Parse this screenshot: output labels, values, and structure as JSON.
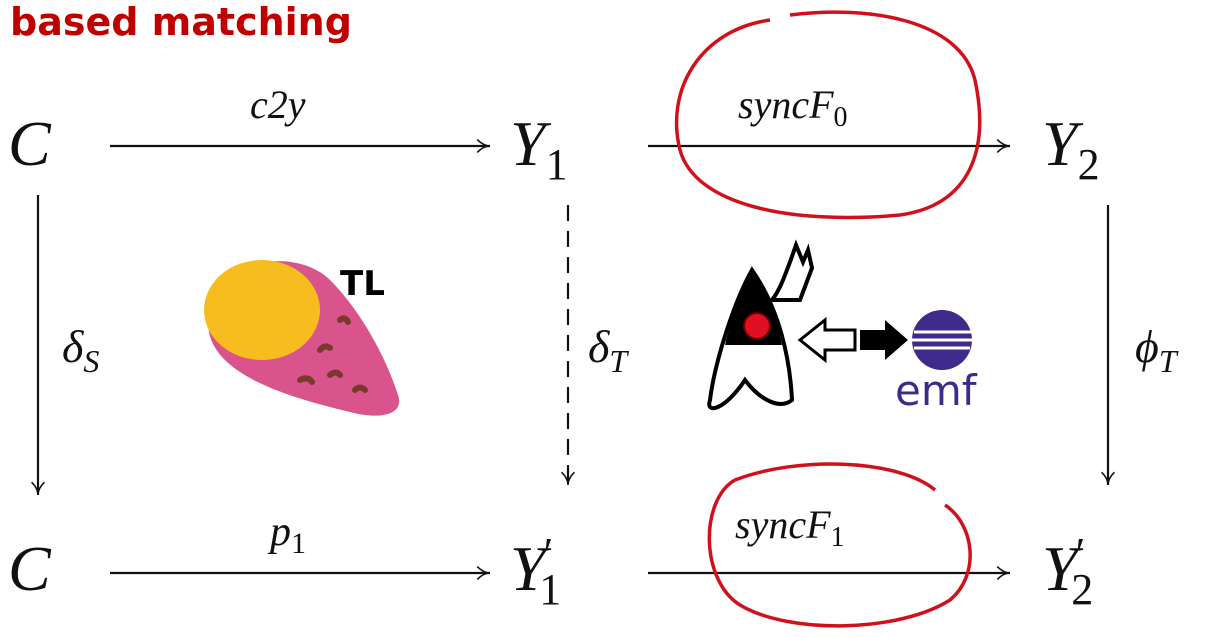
{
  "title": "based matching",
  "nodes": [
    {
      "base": "C"
    },
    {
      "base": "Y",
      "sub": "1"
    },
    {
      "base": "Y",
      "sub": "2"
    },
    {
      "base": "C"
    },
    {
      "base": "Y",
      "sub": "1",
      "prime": "′"
    },
    {
      "base": "Y",
      "sub": "2",
      "prime": "′"
    }
  ],
  "edges": [
    {
      "base": "c2y"
    },
    {
      "base": "syncF",
      "sub": "0"
    },
    {
      "base": "δ",
      "sub": "S"
    },
    {
      "base": "δ",
      "sub": "T"
    },
    {
      "base": "ϕ",
      "sub": "T"
    },
    {
      "base": "p",
      "sub": "1"
    },
    {
      "base": "syncF",
      "sub": "1"
    }
  ],
  "icons": {
    "tl": "TL",
    "emf": "emf"
  }
}
